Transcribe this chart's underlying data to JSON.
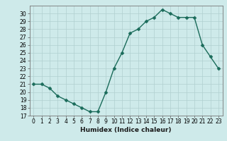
{
  "x": [
    0,
    1,
    2,
    3,
    4,
    5,
    6,
    7,
    8,
    9,
    10,
    11,
    12,
    13,
    14,
    15,
    16,
    17,
    18,
    19,
    20,
    21,
    22,
    23
  ],
  "y": [
    21,
    21,
    20.5,
    19.5,
    19,
    18.5,
    18,
    17.5,
    17.5,
    20,
    23,
    25,
    27.5,
    28,
    29,
    29.5,
    30.5,
    30,
    29.5,
    29.5,
    29.5,
    26,
    24.5,
    23
  ],
  "line_color": "#1a6b5a",
  "marker_color": "#1a6b5a",
  "bg_color": "#ceeaea",
  "grid_color": "#b0d0d0",
  "xlabel": "Humidex (Indice chaleur)",
  "ylim": [
    17,
    31
  ],
  "xlim": [
    -0.5,
    23.5
  ],
  "yticks": [
    17,
    18,
    19,
    20,
    21,
    22,
    23,
    24,
    25,
    26,
    27,
    28,
    29,
    30
  ],
  "xticks": [
    0,
    1,
    2,
    3,
    4,
    5,
    6,
    7,
    8,
    9,
    10,
    11,
    12,
    13,
    14,
    15,
    16,
    17,
    18,
    19,
    20,
    21,
    22,
    23
  ],
  "tick_fontsize": 5.5,
  "xlabel_fontsize": 6.5,
  "linewidth": 1.0,
  "markersize": 2.5
}
